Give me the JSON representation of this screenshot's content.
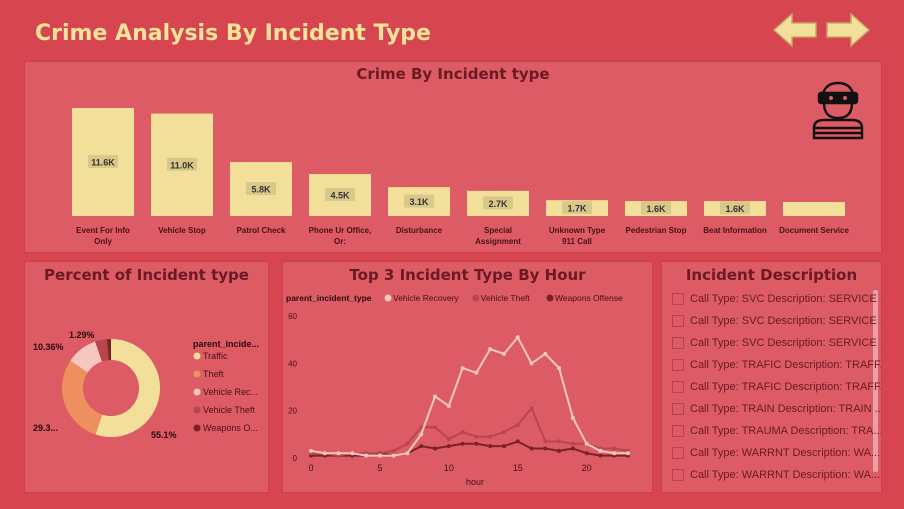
{
  "page_title": "Crime Analysis By Incident Type",
  "nav": {
    "back": "arrow-left",
    "forward": "arrow-right"
  },
  "colors": {
    "background": "#d64550",
    "panel": "#dc5b64",
    "bar": "#f2e09a",
    "title": "#f7e49a",
    "text": "#6b1a22"
  },
  "bar_panel": {
    "title": "Crime By Incident type",
    "icon": "thief-icon"
  },
  "donut_panel": {
    "title": "Percent of Incident type"
  },
  "line_panel": {
    "title": "Top 3 Incident Type By Hour"
  },
  "desc_panel": {
    "title": "Incident Description",
    "items": [
      "Call Type: SVC Description: SERVICE ...",
      "Call Type: SVC Description: SERVICE ...",
      "Call Type: SVC Description: SERVICE ...",
      "Call Type: TRAFIC Description: TRAFF...",
      "Call Type: TRAFIC Description: TRAFF...",
      "Call Type: TRAIN Description: TRAIN ...",
      "Call Type: TRAUMA Description: TRA...",
      "Call Type: WARRNT Description: WA...",
      "Call Type: WARRNT Description: WA..."
    ]
  },
  "chart_data": [
    {
      "type": "bar",
      "title": "Crime By Incident type",
      "categories": [
        "Event For Info Only",
        "Vehicle Stop",
        "Patrol Check",
        "Phone Ur Office, Or:",
        "Disturbance",
        "Special Assignment",
        "Unknown Type 911 Call",
        "Pedestrian Stop",
        "Beat Information",
        "Document Service"
      ],
      "category_lines": [
        [
          "Event For Info",
          "Only"
        ],
        [
          "Vehicle Stop"
        ],
        [
          "Patrol Check"
        ],
        [
          "Phone Ur Office,",
          "Or:"
        ],
        [
          "Disturbance"
        ],
        [
          "Special",
          "Assignment"
        ],
        [
          "Unknown Type",
          "911 Call"
        ],
        [
          "Pedestrian Stop"
        ],
        [
          "Beat Information"
        ],
        [
          "Document Service"
        ]
      ],
      "values": [
        11600,
        11000,
        5800,
        4500,
        3100,
        2700,
        1700,
        1600,
        1600,
        1500
      ],
      "data_labels": [
        "11.6K",
        "11.0K",
        "5.8K",
        "4.5K",
        "3.1K",
        "2.7K",
        "1.7K",
        "1.6K",
        "1.6K",
        ""
      ],
      "color": "#f2e09a"
    },
    {
      "type": "pie",
      "title": "Percent of Incident type",
      "legend_title": "parent_incide...",
      "slices": [
        {
          "name": "Traffic",
          "legend_label": "Traffic",
          "value": 55.1,
          "label": "55.1%",
          "color": "#f2e09a"
        },
        {
          "name": "Theft",
          "legend_label": "Theft",
          "value": 29.3,
          "label": "29.3...",
          "color": "#ee8f5f"
        },
        {
          "name": "Vehicle Recovery",
          "legend_label": "Vehicle Rec...",
          "value": 10.36,
          "label": "10.36%",
          "color": "#f5c7c0"
        },
        {
          "name": "Vehicle Theft",
          "legend_label": "Vehicle Theft",
          "value": 3.95,
          "label": "",
          "color": "#b8464f"
        },
        {
          "name": "Weapons Offense",
          "legend_label": "Weapons O...",
          "value": 1.29,
          "label": "1.29%",
          "color": "#7a2228"
        }
      ],
      "legend_placement": "right"
    },
    {
      "type": "line",
      "title": "Top 3 Incident Type By Hour",
      "legend_title": "parent_incident_type",
      "xlabel": "hour",
      "x": [
        0,
        1,
        2,
        3,
        4,
        5,
        6,
        7,
        8,
        9,
        10,
        11,
        12,
        13,
        14,
        15,
        16,
        17,
        18,
        19,
        20,
        21,
        22,
        23
      ],
      "xticks": [
        0,
        5,
        10,
        15,
        20
      ],
      "ylim": [
        0,
        60
      ],
      "yticks": [
        0,
        20,
        40,
        60
      ],
      "legend_placement": "top",
      "series": [
        {
          "name": "Vehicle Recovery",
          "color": "#f5c7c0",
          "values": [
            3,
            2,
            2,
            2,
            1,
            1,
            1,
            2,
            10,
            26,
            22,
            38,
            36,
            46,
            44,
            51,
            40,
            44,
            38,
            17,
            6,
            3,
            2,
            2
          ]
        },
        {
          "name": "Vehicle Theft",
          "color": "#b8464f",
          "values": [
            2,
            2,
            1,
            2,
            2,
            2,
            3,
            6,
            13,
            13,
            8,
            11,
            9,
            9,
            11,
            14,
            21,
            7,
            7,
            6,
            6,
            4,
            4,
            3
          ]
        },
        {
          "name": "Weapons Offense",
          "color": "#7a2228",
          "values": [
            1,
            1,
            1,
            1,
            1,
            2,
            1,
            2,
            5,
            4,
            5,
            6,
            6,
            5,
            5,
            7,
            4,
            4,
            3,
            4,
            2,
            1,
            1,
            1
          ]
        }
      ]
    }
  ]
}
